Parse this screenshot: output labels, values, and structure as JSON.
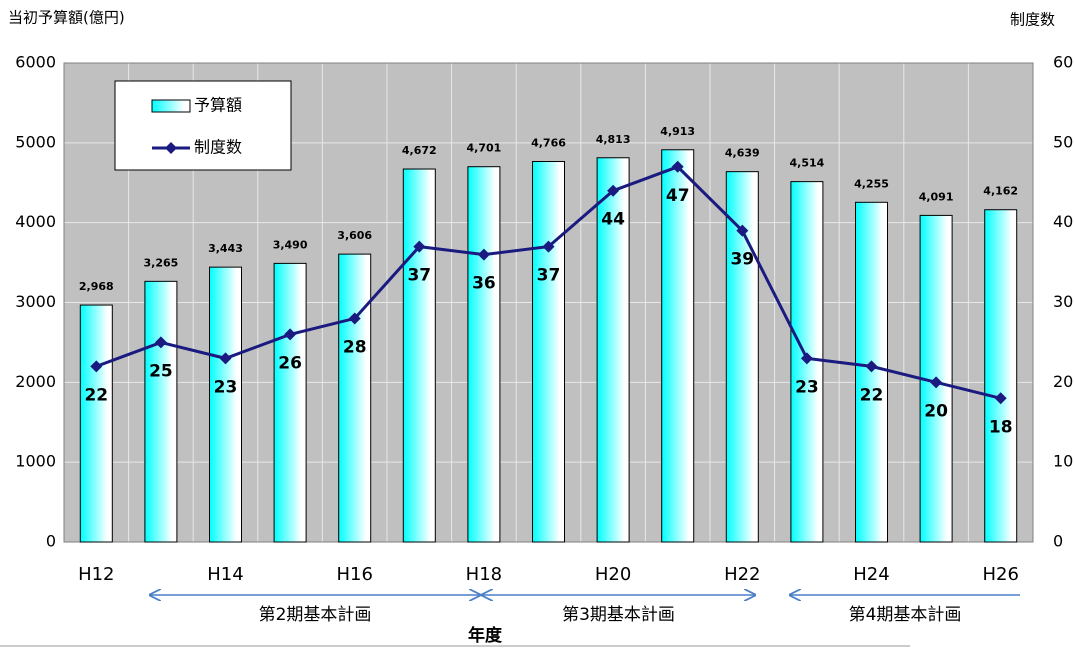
{
  "chart_data": {
    "type": "bar",
    "y_label": "当初予算額(億円)",
    "y2_label": "制度数",
    "x_label": "年度",
    "categories": [
      "H12",
      null,
      "H14",
      null,
      "H16",
      null,
      "H18",
      null,
      "H20",
      null,
      "H22",
      null,
      "H24",
      null,
      "H26"
    ],
    "series": [
      {
        "name": "予算額",
        "type": "bar",
        "color": "#00ffff",
        "values": [
          2968,
          3265,
          3443,
          3490,
          3606,
          4672,
          4701,
          4766,
          4813,
          4913,
          4639,
          4514,
          4255,
          4091,
          4162
        ],
        "value_labels": [
          "2,968",
          "3,265",
          "3,443",
          "3,490",
          "3,606",
          "4,672",
          "4,701",
          "4,766",
          "4,813",
          "4,913",
          "4,639",
          "4,514",
          "4,255",
          "4,091",
          "4,162"
        ]
      },
      {
        "name": "制度数",
        "type": "line",
        "axis": "y2",
        "color": "#1a1a80",
        "values": [
          22,
          25,
          23,
          26,
          28,
          37,
          36,
          37,
          44,
          47,
          39,
          23,
          22,
          20,
          18
        ]
      }
    ],
    "ylim": [
      0,
      6000
    ],
    "yticks": [
      0,
      1000,
      2000,
      3000,
      4000,
      5000,
      6000
    ],
    "y2lim": [
      0,
      60
    ],
    "y2ticks": [
      0,
      10,
      20,
      30,
      40,
      50,
      60
    ],
    "grid": true,
    "legend": "upper left",
    "annotations": [
      "第2期基本計画",
      "第3期基本計画",
      "第4期基本計画"
    ]
  }
}
